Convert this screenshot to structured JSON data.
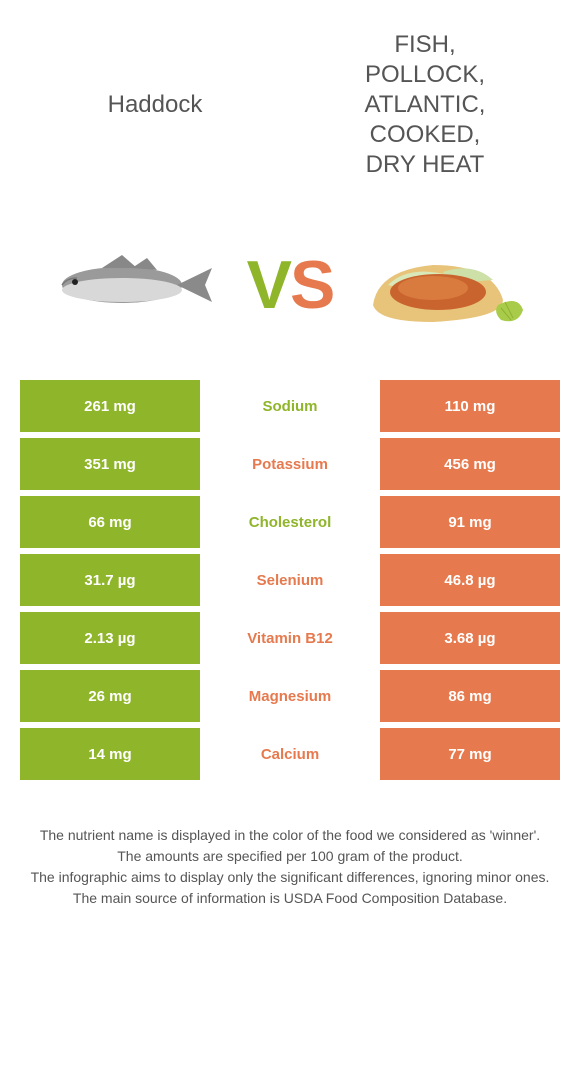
{
  "foods": {
    "left": {
      "name": "Haddock",
      "title_fontsize": 24
    },
    "right": {
      "name": "FISH, POLLOCK, ATLANTIC, COOKED, DRY HEAT",
      "title_fontsize": 24
    }
  },
  "vs_label": {
    "v": "V",
    "s": "S"
  },
  "colors": {
    "left": "#8fb52a",
    "right": "#e67a4e",
    "text": "#555555",
    "background": "#ffffff"
  },
  "rows": [
    {
      "nutrient": "Sodium",
      "left": "261 mg",
      "right": "110 mg",
      "winner": "left"
    },
    {
      "nutrient": "Potassium",
      "left": "351 mg",
      "right": "456 mg",
      "winner": "right"
    },
    {
      "nutrient": "Cholesterol",
      "left": "66 mg",
      "right": "91 mg",
      "winner": "left"
    },
    {
      "nutrient": "Selenium",
      "left": "31.7 µg",
      "right": "46.8 µg",
      "winner": "right"
    },
    {
      "nutrient": "Vitamin B12",
      "left": "2.13 µg",
      "right": "3.68 µg",
      "winner": "right"
    },
    {
      "nutrient": "Magnesium",
      "left": "26 mg",
      "right": "86 mg",
      "winner": "right"
    },
    {
      "nutrient": "Calcium",
      "left": "14 mg",
      "right": "77 mg",
      "winner": "right"
    }
  ],
  "footnotes": [
    "The nutrient name is displayed in the color of the food we considered as 'winner'.",
    "The amounts are specified per 100 gram of the product.",
    "The infographic aims to display only the significant differences, ignoring minor ones.",
    "The main source of information is USDA Food Composition Database."
  ]
}
